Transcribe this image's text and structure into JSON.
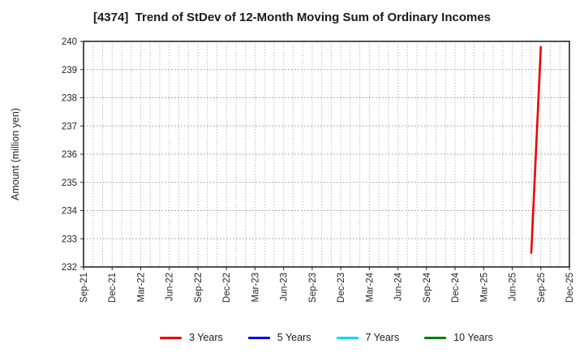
{
  "colors": {
    "background": "#ffffff",
    "plot_border": "#262626",
    "grid": "#a6a6a6",
    "tick_text": "#262626",
    "title_text": "#1a1a1a"
  },
  "chart_data": {
    "type": "line",
    "title": "[4374]  Trend of StDev of 12-Month Moving Sum of Ordinary Incomes",
    "ylabel": "Amount (million yen)",
    "ylim": [
      232,
      240
    ],
    "y_ticks": [
      232,
      233,
      234,
      235,
      236,
      237,
      238,
      239,
      240
    ],
    "x_tick_labels": [
      "Sep-21",
      "Dec-21",
      "Mar-22",
      "Jun-22",
      "Sep-22",
      "Dec-22",
      "Mar-23",
      "Jun-23",
      "Sep-23",
      "Dec-23",
      "Mar-24",
      "Jun-24",
      "Sep-24",
      "Dec-24",
      "Mar-25",
      "Jun-25",
      "Sep-25",
      "Dec-25"
    ],
    "x_months_total": 51,
    "grid": {
      "vertical": "monthly dotted",
      "horizontal": "per-unit dotted"
    },
    "legend_position": "bottom-center",
    "series": [
      {
        "name": "3 Years",
        "color": "#ee0000",
        "points": [
          {
            "x_label": "Aug-25",
            "x_month": 47,
            "y": 232.5
          },
          {
            "x_label": "Sep-25",
            "x_month": 48,
            "y": 239.8
          }
        ]
      },
      {
        "name": "5 Years",
        "color": "#0000ee",
        "points": []
      },
      {
        "name": "7 Years",
        "color": "#00e0e8",
        "points": []
      },
      {
        "name": "10 Years",
        "color": "#007f00",
        "points": []
      }
    ]
  }
}
